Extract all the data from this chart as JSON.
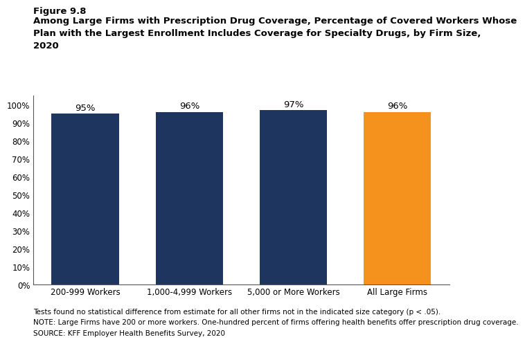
{
  "categories": [
    "200-999 Workers",
    "1,000-4,999 Workers",
    "5,000 or More Workers",
    "All Large Firms"
  ],
  "values": [
    95,
    96,
    97,
    96
  ],
  "labels": [
    "95%",
    "96%",
    "97%",
    "96%"
  ],
  "bar_colors": [
    "#1e3560",
    "#1e3560",
    "#1e3560",
    "#f5921e"
  ],
  "ylim": [
    0,
    100
  ],
  "yticks": [
    0,
    10,
    20,
    30,
    40,
    50,
    60,
    70,
    80,
    90,
    100
  ],
  "ytick_labels": [
    "0%",
    "10%",
    "20%",
    "30%",
    "40%",
    "50%",
    "60%",
    "70%",
    "80%",
    "90%",
    "100%"
  ],
  "figure_label": "Figure 9.8",
  "title_line1": "Among Large Firms with Prescription Drug Coverage, Percentage of Covered Workers Whose",
  "title_line2": "Plan with the Largest Enrollment Includes Coverage for Specialty Drugs, by Firm Size,",
  "title_line3": "2020",
  "footnote1": "Tests found no statistical difference from estimate for all other firms not in the indicated size category (p < .05).",
  "footnote2": "NOTE: Large Firms have 200 or more workers. One-hundred percent of firms offering health benefits offer prescription drug coverage.",
  "footnote3": "SOURCE: KFF Employer Health Benefits Survey, 2020",
  "bar_label_fontsize": 9.5,
  "tick_fontsize": 8.5,
  "footnote_fontsize": 7.5,
  "title_fontsize": 9.5,
  "figure_label_fontsize": 9.5
}
